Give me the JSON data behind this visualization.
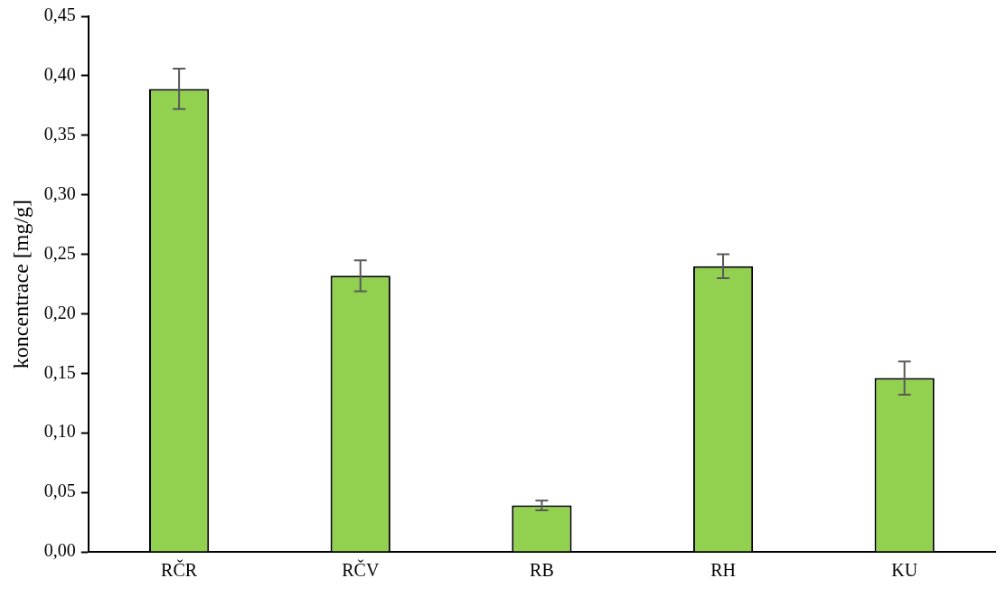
{
  "chart_data": {
    "type": "bar",
    "ylabel": "koncentrace [mg/g]",
    "categories": [
      "RČR",
      "RČV",
      "RB",
      "RH",
      "KU"
    ],
    "values": [
      0.389,
      0.232,
      0.039,
      0.24,
      0.146
    ],
    "errors": [
      0.017,
      0.013,
      0.004,
      0.01,
      0.014
    ],
    "color": "#92d050",
    "ylim": [
      0,
      0.45
    ],
    "yticks": [
      {
        "value": 0,
        "label": "0,00"
      },
      {
        "value": 0.05,
        "label": "0,05"
      },
      {
        "value": 0.1,
        "label": "0,10"
      },
      {
        "value": 0.15,
        "label": "0,15"
      },
      {
        "value": 0.2,
        "label": "0,20"
      },
      {
        "value": 0.25,
        "label": "0,25"
      },
      {
        "value": 0.3,
        "label": "0,30"
      },
      {
        "value": 0.35,
        "label": "0,35"
      },
      {
        "value": 0.4,
        "label": "0,40"
      },
      {
        "value": 0.45,
        "label": "0,45"
      }
    ],
    "grid": false,
    "legend": false
  }
}
